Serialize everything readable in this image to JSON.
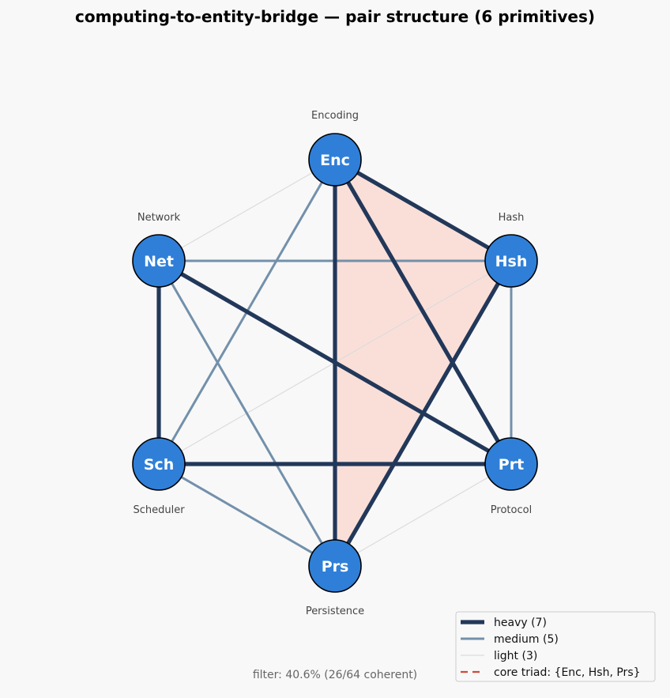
{
  "title": "computing-to-entity-bridge — pair structure  (6 primitives)",
  "colors": {
    "node_fill": "#2f7fd8",
    "node_stroke": "#000000",
    "heavy": "#22385a",
    "medium": "#7390ab",
    "light": "#dcdcdc",
    "triad_fill": "#fadfd8",
    "triad_legend": "#d04a3a",
    "background": "#f8f8f8"
  },
  "nodes": [
    {
      "id": "Enc",
      "abbr": "Enc",
      "name": "Encoding"
    },
    {
      "id": "Hsh",
      "abbr": "Hsh",
      "name": "Hash"
    },
    {
      "id": "Prt",
      "abbr": "Prt",
      "name": "Protocol"
    },
    {
      "id": "Prs",
      "abbr": "Prs",
      "name": "Persistence"
    },
    {
      "id": "Sch",
      "abbr": "Sch",
      "name": "Scheduler"
    },
    {
      "id": "Net",
      "abbr": "Net",
      "name": "Network"
    }
  ],
  "edges": [
    {
      "source": "Enc",
      "target": "Hsh",
      "weight": "heavy"
    },
    {
      "source": "Enc",
      "target": "Prt",
      "weight": "heavy"
    },
    {
      "source": "Enc",
      "target": "Prs",
      "weight": "heavy"
    },
    {
      "source": "Hsh",
      "target": "Prs",
      "weight": "heavy"
    },
    {
      "source": "Net",
      "target": "Sch",
      "weight": "heavy"
    },
    {
      "source": "Net",
      "target": "Prt",
      "weight": "heavy"
    },
    {
      "source": "Sch",
      "target": "Prt",
      "weight": "heavy"
    },
    {
      "source": "Enc",
      "target": "Sch",
      "weight": "medium"
    },
    {
      "source": "Net",
      "target": "Hsh",
      "weight": "medium"
    },
    {
      "source": "Hsh",
      "target": "Prt",
      "weight": "medium"
    },
    {
      "source": "Net",
      "target": "Prs",
      "weight": "medium"
    },
    {
      "source": "Sch",
      "target": "Prs",
      "weight": "medium"
    },
    {
      "source": "Enc",
      "target": "Net",
      "weight": "light"
    },
    {
      "source": "Hsh",
      "target": "Sch",
      "weight": "light"
    },
    {
      "source": "Prt",
      "target": "Prs",
      "weight": "light"
    }
  ],
  "core_triad": [
    "Enc",
    "Hsh",
    "Prs"
  ],
  "legend": {
    "placement": "bottom-right",
    "items": [
      {
        "key": "heavy",
        "label": "heavy (7)",
        "style": "heavy"
      },
      {
        "key": "medium",
        "label": "medium (5)",
        "style": "medium"
      },
      {
        "key": "light",
        "label": "light (3)",
        "style": "light"
      },
      {
        "key": "triad",
        "label": "core triad: {Enc, Hsh, Prs}",
        "style": "triad"
      }
    ]
  },
  "footer": "filter: 40.6%  (26/64 coherent)"
}
